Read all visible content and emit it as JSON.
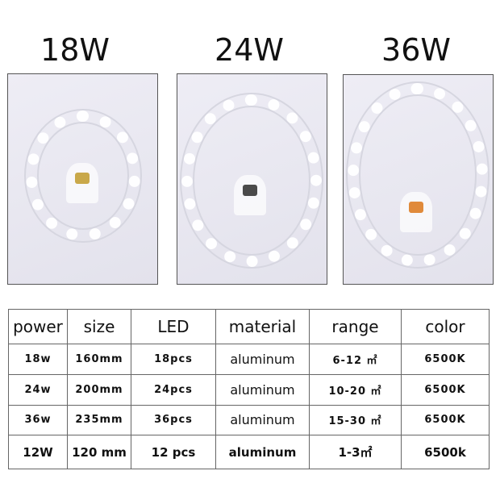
{
  "products": [
    {
      "title": "18W",
      "chip_color": "#c9a84a"
    },
    {
      "title": "24W",
      "chip_color": "#4a4a4a"
    },
    {
      "title": "36W",
      "chip_color": "#e08a3a"
    }
  ],
  "table": {
    "headers": [
      "power",
      "size",
      "LED",
      "material",
      "range",
      "color"
    ],
    "rows": [
      [
        "18w",
        "160mm",
        "18pcs",
        "aluminum",
        "6-12 ㎡",
        "6500K"
      ],
      [
        "24w",
        "200mm",
        "24pcs",
        "aluminum",
        "10-20 ㎡",
        "6500K"
      ],
      [
        "36w",
        "235mm",
        "36pcs",
        "aluminum",
        "15-30 ㎡",
        "6500K"
      ],
      [
        "12W",
        "120 mm",
        "12 pcs",
        "aluminum",
        "1-3㎡",
        "6500k"
      ]
    ]
  }
}
